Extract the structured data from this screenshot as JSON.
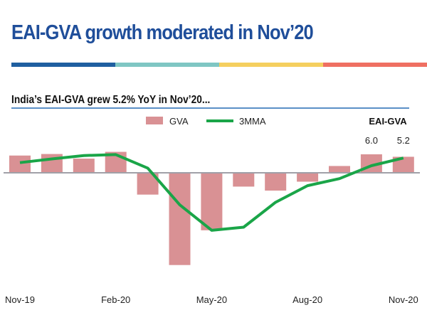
{
  "title": "EAI-GVA growth moderated in Nov’20",
  "subtitle": "India’s EAI-GVA grew 5.2% YoY in Nov’20...",
  "colors": {
    "title": "#1f4e9a",
    "bar": "#d99194",
    "line": "#1aa548",
    "stripe": [
      "#1f5fa0",
      "#7fc6c3",
      "#f5cf5f",
      "#ef6f62"
    ],
    "underline": "#5b8fc7"
  },
  "chart_data": {
    "type": "bar+line",
    "title": "EAI-GVA",
    "categories": [
      "Nov-19",
      "Dec-19",
      "Jan-20",
      "Feb-20",
      "Mar-20",
      "Apr-20",
      "May-20",
      "Jun-20",
      "Jul-20",
      "Aug-20",
      "Sep-20",
      "Oct-20",
      "Nov-20"
    ],
    "x_tick_labels": [
      "Nov-19",
      "Feb-20",
      "May-20",
      "Aug-20",
      "Nov-20"
    ],
    "series": [
      {
        "name": "GVA",
        "type": "bar",
        "values": [
          5.6,
          6.1,
          4.6,
          6.8,
          -7.1,
          -30.0,
          -18.7,
          -4.5,
          -5.8,
          -2.9,
          2.2,
          6.0,
          5.2
        ]
      },
      {
        "name": "3MMA",
        "type": "line",
        "values": [
          3.3,
          4.5,
          5.6,
          5.9,
          1.5,
          -10.4,
          -18.7,
          -17.7,
          -9.6,
          -4.2,
          -1.9,
          2.3,
          4.8
        ]
      }
    ],
    "data_labels": [
      {
        "category": "Oct-20",
        "text": "6.0"
      },
      {
        "category": "Nov-20",
        "text": "5.2"
      }
    ],
    "ylim": [
      -34,
      10
    ],
    "grid": false,
    "legend": "top"
  }
}
